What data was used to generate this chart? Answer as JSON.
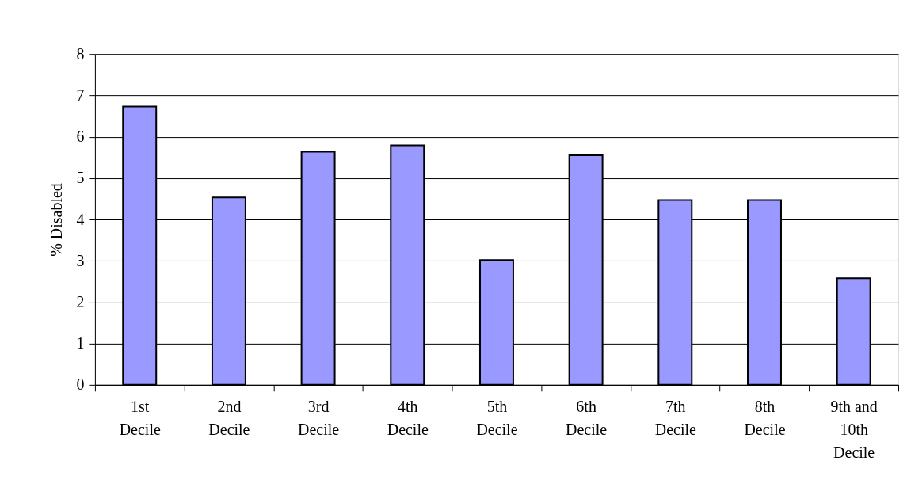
{
  "chart_data": {
    "type": "bar",
    "ylabel": "% Disabled",
    "categories": [
      "1st Decile",
      "2nd Decile",
      "3rd Decile",
      "4th Decile",
      "5th Decile",
      "6th Decile",
      "7th Decile",
      "8th Decile",
      "9th and 10th Decile"
    ],
    "values": [
      6.73,
      4.53,
      5.64,
      5.79,
      3.02,
      5.55,
      4.47,
      4.47,
      2.58
    ],
    "color": "#9999ff",
    "ylim": [
      0,
      8
    ],
    "yticks": [
      0,
      1,
      2,
      3,
      4,
      5,
      6,
      7,
      8
    ],
    "grid": "y"
  }
}
